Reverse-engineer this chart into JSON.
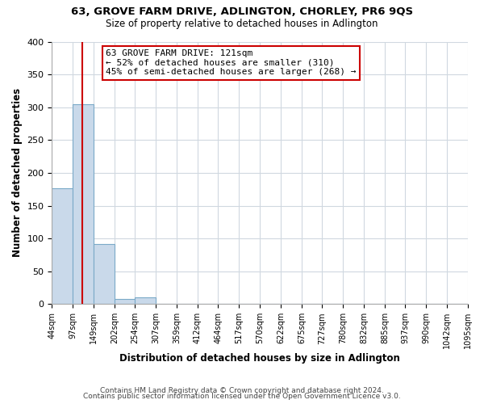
{
  "title1": "63, GROVE FARM DRIVE, ADLINGTON, CHORLEY, PR6 9QS",
  "title2": "Size of property relative to detached houses in Adlington",
  "xlabel": "Distribution of detached houses by size in Adlington",
  "ylabel": "Number of detached properties",
  "bin_edges": [
    44,
    97,
    149,
    202,
    254,
    307,
    359,
    412,
    464,
    517,
    570,
    622,
    675,
    727,
    780,
    832,
    885,
    937,
    990,
    1042,
    1095
  ],
  "bin_labels": [
    "44sqm",
    "97sqm",
    "149sqm",
    "202sqm",
    "254sqm",
    "307sqm",
    "359sqm",
    "412sqm",
    "464sqm",
    "517sqm",
    "570sqm",
    "622sqm",
    "675sqm",
    "727sqm",
    "780sqm",
    "832sqm",
    "885sqm",
    "937sqm",
    "990sqm",
    "1042sqm",
    "1095sqm"
  ],
  "counts": [
    176,
    305,
    92,
    8,
    10,
    0,
    0,
    0,
    0,
    0,
    0,
    1,
    0,
    0,
    0,
    0,
    0,
    0,
    0,
    1
  ],
  "bar_color": "#c9d9ea",
  "bar_edge_color": "#7baac8",
  "property_line_x": 121,
  "property_line_color": "#cc0000",
  "annotation_line1": "63 GROVE FARM DRIVE: 121sqm",
  "annotation_line2": "← 52% of detached houses are smaller (310)",
  "annotation_line3": "45% of semi-detached houses are larger (268) →",
  "annotation_box_color": "#ffffff",
  "annotation_box_edge": "#cc0000",
  "ylim": [
    0,
    400
  ],
  "yticks": [
    0,
    50,
    100,
    150,
    200,
    250,
    300,
    350,
    400
  ],
  "footer1": "Contains HM Land Registry data © Crown copyright and database right 2024.",
  "footer2": "Contains public sector information licensed under the Open Government Licence v3.0.",
  "bg_color": "#ffffff",
  "plot_bg_color": "#ffffff",
  "grid_color": "#d0d8e0"
}
